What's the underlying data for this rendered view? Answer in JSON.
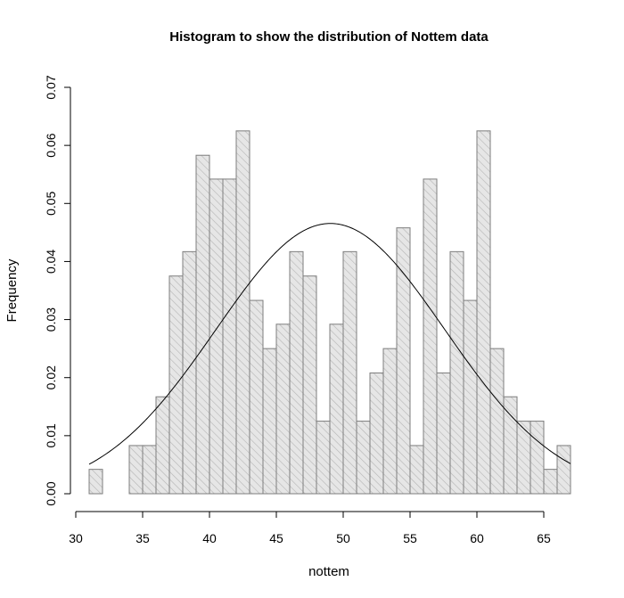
{
  "chart_data": {
    "type": "bar",
    "title": "Histogram to show the distribution of Nottem data",
    "xlabel": "nottem",
    "ylabel": "Frequency",
    "xlim": [
      31,
      67
    ],
    "ylim": [
      0,
      0.07
    ],
    "x_ticks": [
      30,
      35,
      40,
      45,
      50,
      55,
      60,
      65
    ],
    "y_ticks": [
      0.0,
      0.01,
      0.02,
      0.03,
      0.04,
      0.05,
      0.06,
      0.07
    ],
    "x_tick_labels": [
      "30",
      "35",
      "40",
      "45",
      "50",
      "55",
      "60",
      "65"
    ],
    "y_tick_labels": [
      "0.00",
      "0.01",
      "0.02",
      "0.03",
      "0.04",
      "0.05",
      "0.06",
      "0.07"
    ],
    "bin_width": 1,
    "bin_start": [
      31,
      32,
      33,
      34,
      35,
      36,
      37,
      38,
      39,
      40,
      41,
      42,
      43,
      44,
      45,
      46,
      47,
      48,
      49,
      50,
      51,
      52,
      53,
      54,
      55,
      56,
      57,
      58,
      59,
      60,
      61,
      62,
      63,
      64,
      65,
      66
    ],
    "values": [
      0.0042,
      0,
      0,
      0.0083,
      0.0083,
      0.0167,
      0.0375,
      0.0417,
      0.0583,
      0.0542,
      0.0542,
      0.0625,
      0.0333,
      0.025,
      0.0292,
      0.0417,
      0.0375,
      0.0125,
      0.0292,
      0.0417,
      0.0125,
      0.0208,
      0.025,
      0.0458,
      0.0083,
      0.0542,
      0.0208,
      0.0417,
      0.0333,
      0.0625,
      0.025,
      0.0167,
      0.0125,
      0.0125,
      0.0042,
      0.0083
    ],
    "density_curve": {
      "type": "normal",
      "mean": 49.04,
      "sd": 8.57
    },
    "bar_fill": "#e6e6e6",
    "bar_hatch_color": "#b4b4b4",
    "bar_edge_color": "#7d7d7d",
    "curve_color": "#000000",
    "grid": false
  }
}
